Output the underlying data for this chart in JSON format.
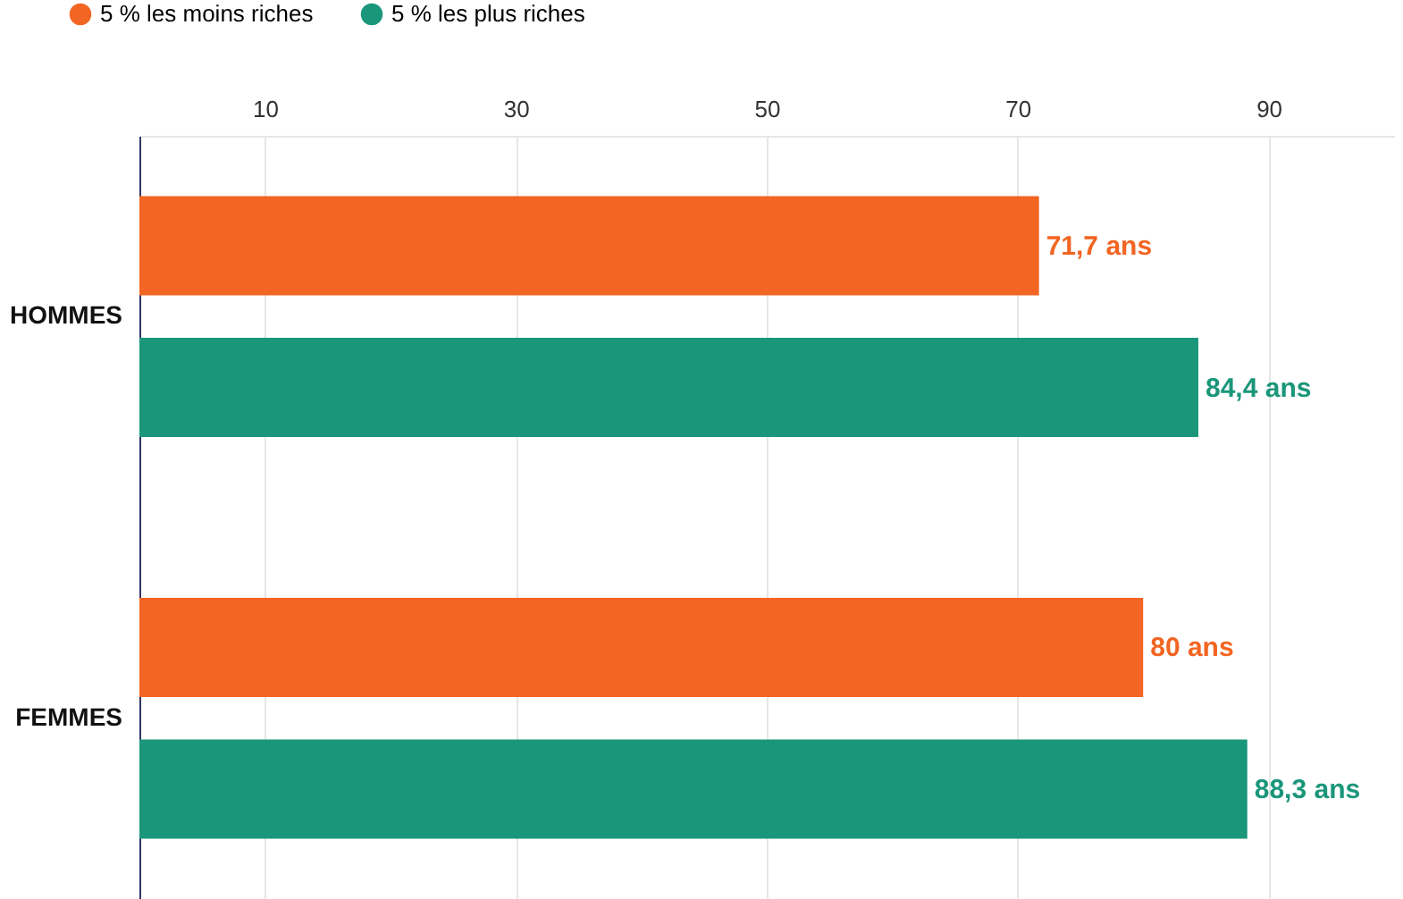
{
  "chart_data": {
    "type": "bar",
    "orientation": "horizontal",
    "categories": [
      "HOMMES",
      "FEMMES"
    ],
    "series": [
      {
        "name": "5 % les moins riches",
        "color": "#f26522",
        "values": [
          71.7,
          80
        ],
        "value_labels": [
          "71,7 ans",
          "80 ans"
        ]
      },
      {
        "name": "5 % les plus riches",
        "color": "#1a967a",
        "values": [
          84.4,
          88.3
        ],
        "value_labels": [
          "84,4 ans",
          "88,3 ans"
        ]
      }
    ],
    "xlim": [
      0,
      100
    ],
    "xticks": [
      10,
      30,
      50,
      70,
      90
    ],
    "grid": "x",
    "legend": "top left"
  }
}
